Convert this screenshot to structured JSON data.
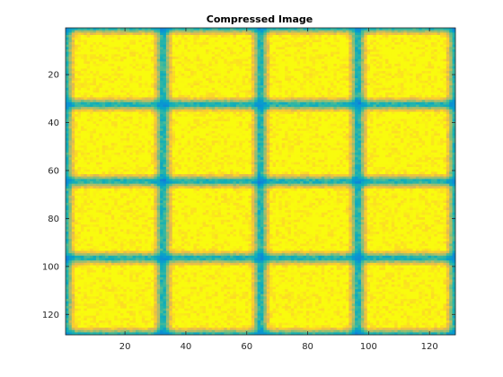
{
  "chart_data": {
    "type": "heatmap",
    "title": "Compressed Image",
    "xlabel": "",
    "ylabel": "",
    "xlim": [
      0.5,
      128.5
    ],
    "ylim": [
      0.5,
      128.5
    ],
    "y_direction": "reversed",
    "x_ticks": [
      20,
      40,
      60,
      80,
      100,
      120
    ],
    "y_ticks": [
      20,
      40,
      60,
      80,
      100,
      120
    ],
    "x_tick_labels": [
      "20",
      "40",
      "60",
      "80",
      "100",
      "120"
    ],
    "y_tick_labels": [
      "20",
      "40",
      "60",
      "80",
      "100",
      "120"
    ],
    "grid": false,
    "colormap": "parula",
    "image_size": [
      128,
      128
    ],
    "pattern": {
      "rows": 4,
      "cols": 4,
      "block_spacing": 32,
      "block_half_size": 12,
      "block_value": 1.0,
      "background_value": 0.15
    }
  }
}
